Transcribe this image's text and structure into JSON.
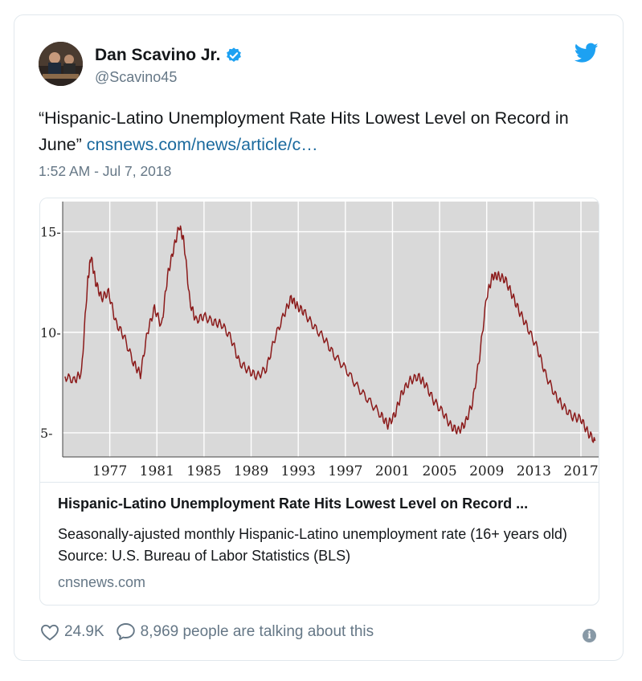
{
  "tweet": {
    "author_name": "Dan Scavino Jr.",
    "author_handle": "@Scavino45",
    "text_main": "“Hispanic-Latino Unemployment Rate Hits Lowest Level on Record in June”",
    "link_text": "cnsnews.com/news/article/c…",
    "timestamp": "1:52 AM - Jul 7, 2018"
  },
  "card": {
    "title": "Hispanic-Latino Unemployment Rate Hits Lowest Level on Record ...",
    "description": "Seasonally-ajusted monthly Hispanic-Latino unemployment rate (16+ years old) Source: U.S. Bureau of Labor Statistics (BLS)",
    "domain": "cnsnews.com"
  },
  "actions": {
    "likes": "24.9K",
    "talking": "8,969 people are talking about this"
  },
  "icons": {
    "verified": "verified-badge-icon",
    "brand": "twitter-bird-icon",
    "like": "heart-icon",
    "reply": "speech-bubble-icon",
    "info": "info-icon"
  },
  "colors": {
    "link": "#1b6a9e",
    "twitter_blue": "#1da1f2",
    "chart_line": "#8b1a1a",
    "chart_bg": "#d9d9d9"
  },
  "chart_data": {
    "type": "line",
    "title": "",
    "xlabel": "",
    "ylabel": "",
    "ylim": [
      3.8,
      16.5
    ],
    "xlim": [
      1973,
      2018.5
    ],
    "yticks": [
      5,
      10,
      15
    ],
    "ytick_labels": [
      "5-",
      "10-",
      "15-"
    ],
    "xticks": [
      1977,
      1981,
      1985,
      1989,
      1993,
      1997,
      2001,
      2005,
      2009,
      2013,
      2017
    ],
    "xtick_labels": [
      "1977",
      "1981",
      "1985",
      "1989",
      "1993",
      "1997",
      "2001",
      "2005",
      "2009",
      "2013",
      "2017"
    ],
    "grid": true,
    "series": [
      {
        "name": "Hispanic-Latino unemployment rate",
        "x": [
          1973.2,
          1974.0,
          1974.6,
          1975.1,
          1975.4,
          1975.8,
          1976.3,
          1976.9,
          1977.5,
          1978.2,
          1979.0,
          1979.6,
          1980.2,
          1980.8,
          1981.4,
          1981.9,
          1982.4,
          1982.9,
          1983.3,
          1983.8,
          1984.3,
          1985.0,
          1985.8,
          1986.5,
          1987.3,
          1988.0,
          1988.8,
          1989.5,
          1990.3,
          1991.0,
          1991.8,
          1992.4,
          1992.9,
          1993.5,
          1994.3,
          1995.2,
          1996.0,
          1997.0,
          1998.0,
          1999.0,
          2000.0,
          2000.6,
          2001.2,
          2001.8,
          2002.5,
          2003.2,
          2003.8,
          2004.5,
          2005.3,
          2006.0,
          2006.6,
          2007.2,
          2007.8,
          2008.4,
          2009.0,
          2009.5,
          2010.0,
          2010.6,
          2011.2,
          2011.8,
          2012.5,
          2013.3,
          2014.0,
          2014.8,
          2015.5,
          2016.3,
          2017.0,
          2017.6,
          2018.2
        ],
        "values": [
          7.8,
          7.6,
          8.0,
          12.4,
          13.8,
          12.5,
          11.7,
          12.0,
          10.5,
          9.8,
          8.5,
          7.9,
          10.0,
          11.2,
          10.3,
          12.8,
          14.1,
          15.3,
          14.5,
          11.5,
          10.6,
          10.8,
          10.5,
          10.4,
          9.7,
          8.5,
          8.1,
          7.8,
          8.2,
          9.7,
          10.9,
          11.7,
          11.3,
          11.0,
          10.3,
          9.7,
          8.9,
          8.2,
          7.3,
          6.6,
          5.9,
          5.4,
          5.9,
          7.0,
          7.6,
          7.8,
          7.4,
          6.6,
          6.0,
          5.3,
          5.1,
          5.5,
          6.5,
          8.8,
          11.8,
          12.8,
          12.8,
          12.6,
          11.8,
          11.0,
          10.2,
          9.2,
          7.9,
          6.9,
          6.3,
          5.8,
          5.7,
          5.0,
          4.6
        ]
      }
    ]
  }
}
